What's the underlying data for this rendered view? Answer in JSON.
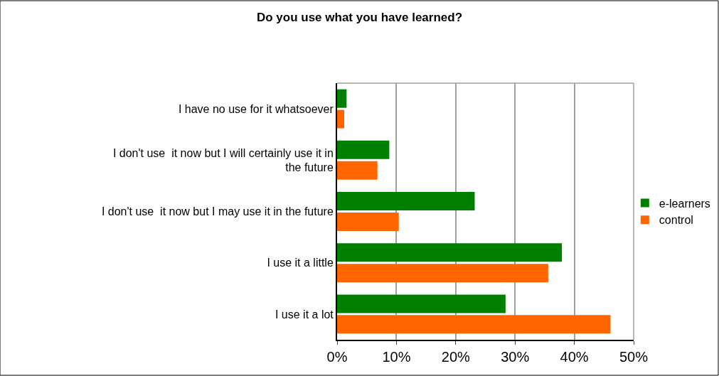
{
  "chart_data": {
    "type": "bar",
    "orientation": "horizontal",
    "title": "Do you use what you have learned?",
    "categories": [
      "I have no use for it whatsoever",
      "I don't use  it now but I will certainly use it in the future",
      "I don't use  it now but I may use it in the future",
      "I use it a little",
      "I use it a lot"
    ],
    "series": [
      {
        "name": "e-learners",
        "color": "#008000",
        "values": [
          1.6,
          8.8,
          23.2,
          37.9,
          28.4
        ]
      },
      {
        "name": "control",
        "color": "#ff6600",
        "values": [
          1.2,
          6.8,
          10.4,
          35.6,
          46.1
        ]
      }
    ],
    "xlim": [
      0,
      50
    ],
    "xticks": [
      {
        "value": 0,
        "label": "0%"
      },
      {
        "value": 10,
        "label": "10%"
      },
      {
        "value": 20,
        "label": "20%"
      },
      {
        "value": 30,
        "label": "30%"
      },
      {
        "value": 40,
        "label": "40%"
      },
      {
        "value": 50,
        "label": "50%"
      }
    ],
    "grid": "x",
    "legend": "right"
  }
}
